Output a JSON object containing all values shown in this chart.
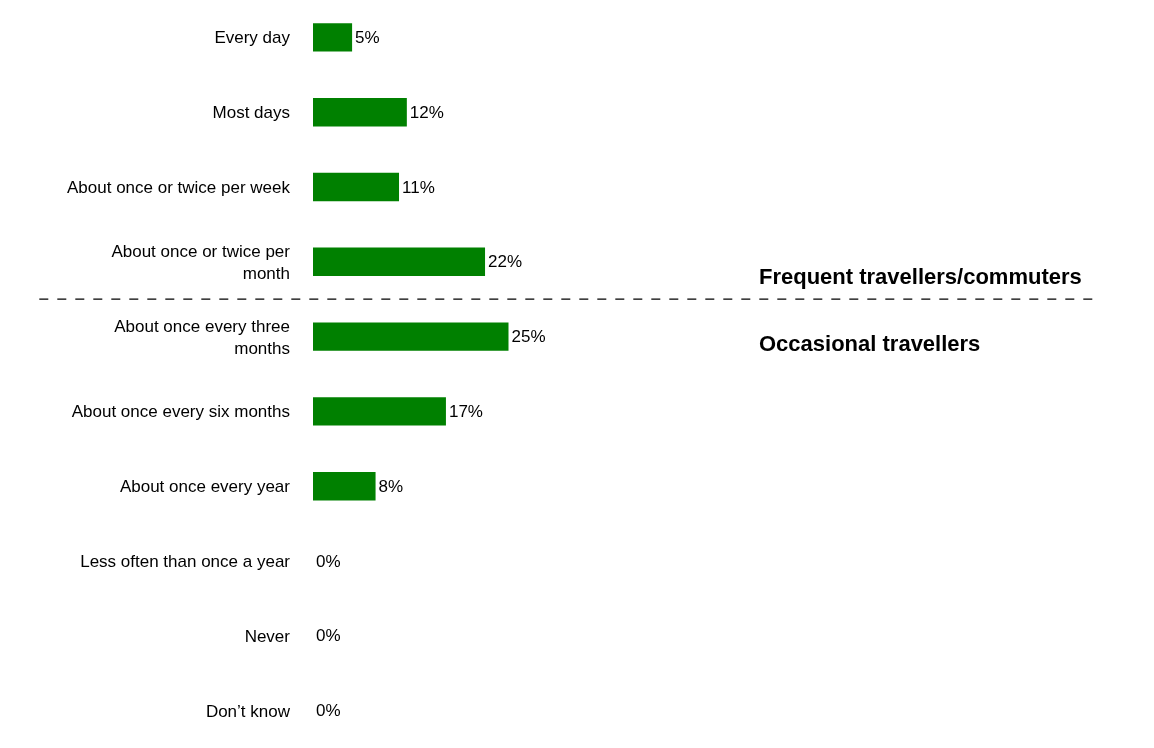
{
  "chart_data": {
    "type": "bar",
    "orientation": "horizontal",
    "categories": [
      "Every day",
      "Most days",
      "About once or twice per week",
      "About once or twice per month",
      "About once every three months",
      "About once every six months",
      "About once every year",
      "Less often than once a year",
      "Never",
      "Don’t know"
    ],
    "values": [
      5,
      12,
      11,
      22,
      25,
      17,
      8,
      0,
      0,
      0
    ],
    "value_labels": [
      "5%",
      "12%",
      "11%",
      "22%",
      "25%",
      "17%",
      "8%",
      "0%",
      "0%",
      "0%"
    ],
    "color": "#008000",
    "xlim": [
      0,
      100
    ],
    "tick_labels": "y",
    "legend": false,
    "annotations": [
      "Frequent travellers/commuters",
      "Occasional travellers"
    ]
  }
}
